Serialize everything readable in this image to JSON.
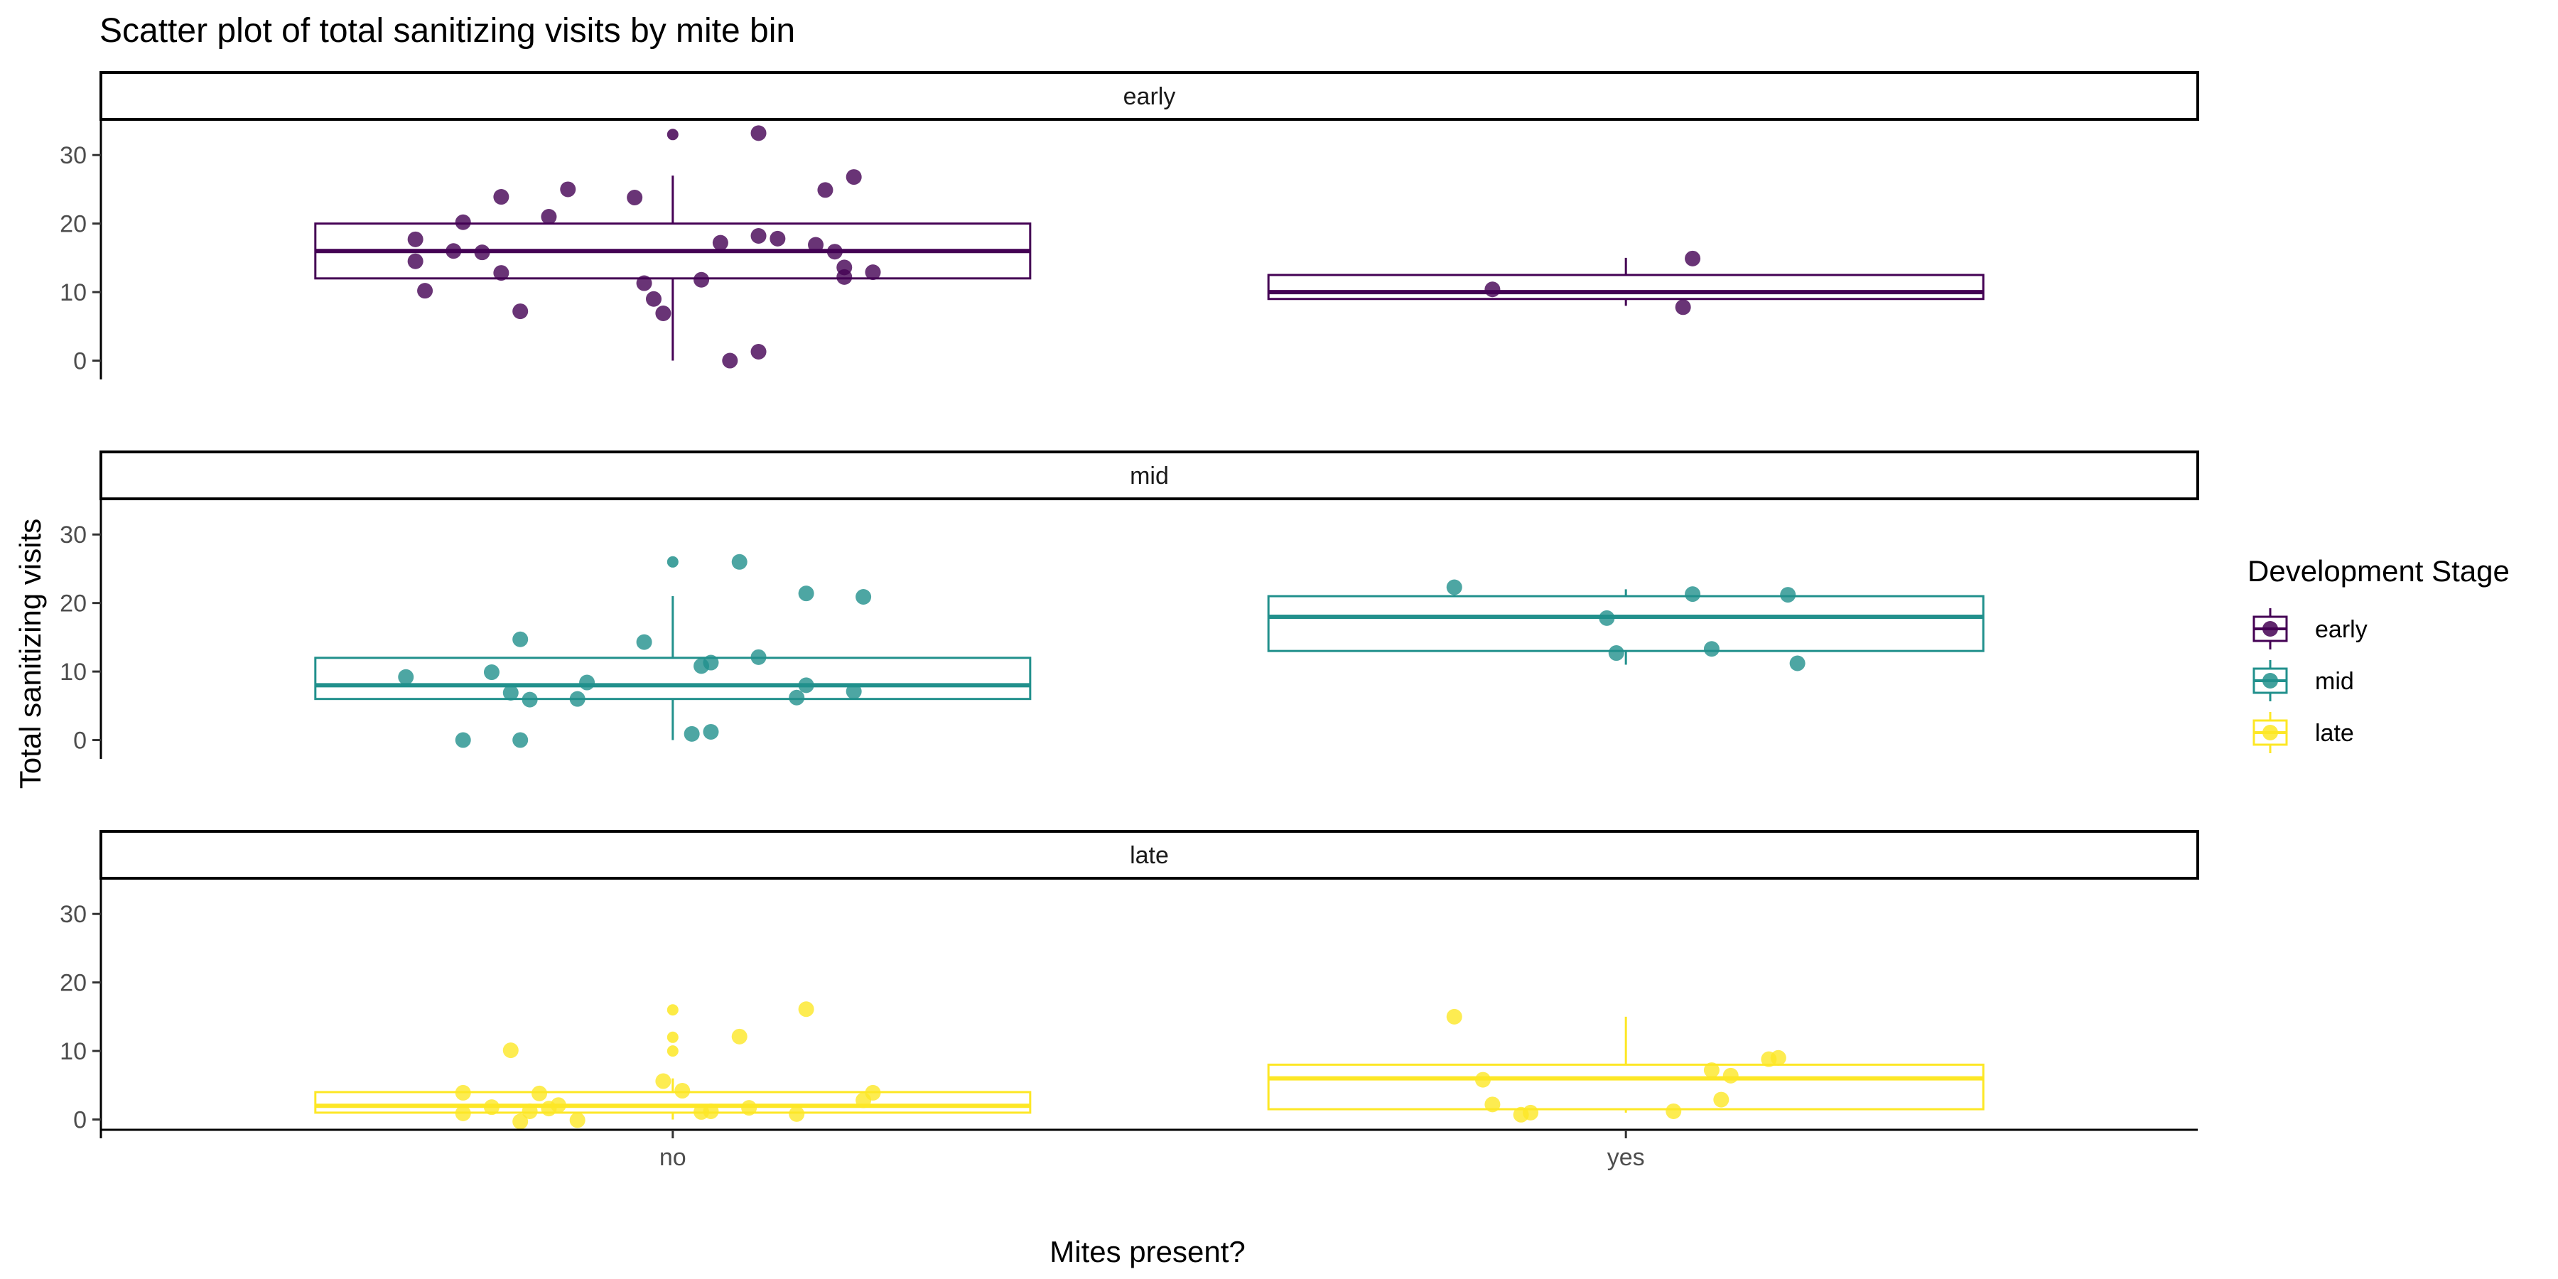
{
  "chart_data": {
    "type": "scatter",
    "title": "Scatter plot of total sanitizing visits by mite bin",
    "xlabel": "Mites present?",
    "ylabel": "Total sanitizing visits",
    "categories": [
      "no",
      "yes"
    ],
    "ylim": [
      -1.5,
      35
    ],
    "yticks": [
      0,
      10,
      20,
      30
    ],
    "grid": false,
    "legend": {
      "title": "Development Stage",
      "position": "right",
      "entries": [
        "early",
        "mid",
        "late"
      ]
    },
    "colors": {
      "early": "#440154",
      "mid": "#21908C",
      "late": "#FDE725"
    },
    "panels": [
      {
        "name": "early",
        "boxes": [
          {
            "category": "no",
            "min": 0,
            "q1": 12,
            "median": 16,
            "q3": 20,
            "max": 27
          },
          {
            "category": "yes",
            "min": 8,
            "q1": 9,
            "median": 10,
            "q3": 12.5,
            "max": 15
          }
        ],
        "outliers": [
          {
            "category": "no",
            "y": 33
          }
        ],
        "points": [
          {
            "x": 0.73,
            "y": 17.7
          },
          {
            "x": 0.78,
            "y": 20.2
          },
          {
            "x": 0.77,
            "y": 16.0
          },
          {
            "x": 0.73,
            "y": 14.5
          },
          {
            "x": 0.8,
            "y": 15.8
          },
          {
            "x": 0.74,
            "y": 10.2
          },
          {
            "x": 0.82,
            "y": 12.8
          },
          {
            "x": 0.82,
            "y": 23.9
          },
          {
            "x": 0.84,
            "y": 7.2
          },
          {
            "x": 0.87,
            "y": 21.0
          },
          {
            "x": 0.89,
            "y": 25.0
          },
          {
            "x": 0.96,
            "y": 23.8
          },
          {
            "x": 0.97,
            "y": 11.3
          },
          {
            "x": 0.98,
            "y": 9.0
          },
          {
            "x": 0.99,
            "y": 6.9
          },
          {
            "x": 1.03,
            "y": 11.8
          },
          {
            "x": 1.05,
            "y": 17.2
          },
          {
            "x": 1.06,
            "y": 0.0
          },
          {
            "x": 1.09,
            "y": 33.2
          },
          {
            "x": 1.09,
            "y": 18.2
          },
          {
            "x": 1.09,
            "y": 1.3
          },
          {
            "x": 1.11,
            "y": 17.8
          },
          {
            "x": 1.15,
            "y": 16.9
          },
          {
            "x": 1.16,
            "y": 24.9
          },
          {
            "x": 1.17,
            "y": 15.9
          },
          {
            "x": 1.18,
            "y": 13.6
          },
          {
            "x": 1.18,
            "y": 12.2
          },
          {
            "x": 1.19,
            "y": 26.8
          },
          {
            "x": 1.21,
            "y": 12.9
          },
          {
            "x": 1.86,
            "y": 10.4
          },
          {
            "x": 2.06,
            "y": 7.8
          },
          {
            "x": 2.07,
            "y": 14.9
          }
        ]
      },
      {
        "name": "mid",
        "boxes": [
          {
            "category": "no",
            "min": 0,
            "q1": 6,
            "median": 8,
            "q3": 12,
            "max": 21
          },
          {
            "category": "yes",
            "min": 11,
            "q1": 13,
            "median": 18,
            "q3": 21,
            "max": 22
          }
        ],
        "outliers": [
          {
            "category": "no",
            "y": 26
          }
        ],
        "points": [
          {
            "x": 0.72,
            "y": 9.2
          },
          {
            "x": 0.78,
            "y": 0.0
          },
          {
            "x": 0.81,
            "y": 9.9
          },
          {
            "x": 0.83,
            "y": 6.9
          },
          {
            "x": 0.84,
            "y": 14.7
          },
          {
            "x": 0.84,
            "y": 0.0
          },
          {
            "x": 0.85,
            "y": 5.9
          },
          {
            "x": 0.9,
            "y": 6.0
          },
          {
            "x": 0.91,
            "y": 8.4
          },
          {
            "x": 0.97,
            "y": 14.3
          },
          {
            "x": 1.02,
            "y": 0.9
          },
          {
            "x": 1.03,
            "y": 10.8
          },
          {
            "x": 1.04,
            "y": 11.3
          },
          {
            "x": 1.04,
            "y": 1.2
          },
          {
            "x": 1.07,
            "y": 26.0
          },
          {
            "x": 1.09,
            "y": 12.1
          },
          {
            "x": 1.13,
            "y": 6.2
          },
          {
            "x": 1.14,
            "y": 21.4
          },
          {
            "x": 1.14,
            "y": 8.0
          },
          {
            "x": 1.19,
            "y": 7.1
          },
          {
            "x": 1.2,
            "y": 20.9
          },
          {
            "x": 1.82,
            "y": 22.3
          },
          {
            "x": 1.98,
            "y": 17.8
          },
          {
            "x": 1.99,
            "y": 12.7
          },
          {
            "x": 2.07,
            "y": 21.3
          },
          {
            "x": 2.09,
            "y": 13.3
          },
          {
            "x": 2.17,
            "y": 21.2
          },
          {
            "x": 2.18,
            "y": 11.2
          }
        ]
      },
      {
        "name": "late",
        "boxes": [
          {
            "category": "no",
            "min": 0,
            "q1": 1,
            "median": 2,
            "q3": 4,
            "max": 6
          },
          {
            "category": "yes",
            "min": 1,
            "q1": 1.5,
            "median": 6,
            "q3": 8,
            "max": 15
          }
        ],
        "outliers": [
          {
            "category": "no",
            "y": 16
          },
          {
            "category": "no",
            "y": 12
          },
          {
            "category": "no",
            "y": 10
          }
        ],
        "points": [
          {
            "x": 0.78,
            "y": 3.9
          },
          {
            "x": 0.78,
            "y": 0.9
          },
          {
            "x": 0.81,
            "y": 1.8
          },
          {
            "x": 0.83,
            "y": 10.1
          },
          {
            "x": 0.84,
            "y": -0.3
          },
          {
            "x": 0.85,
            "y": 1.2
          },
          {
            "x": 0.86,
            "y": 3.8
          },
          {
            "x": 0.87,
            "y": 1.6
          },
          {
            "x": 0.88,
            "y": 2.1
          },
          {
            "x": 0.9,
            "y": -0.1
          },
          {
            "x": 0.99,
            "y": 5.6
          },
          {
            "x": 1.01,
            "y": 4.2
          },
          {
            "x": 1.03,
            "y": 1.1
          },
          {
            "x": 1.04,
            "y": 1.2
          },
          {
            "x": 1.07,
            "y": 12.1
          },
          {
            "x": 1.08,
            "y": 1.7
          },
          {
            "x": 1.13,
            "y": 0.8
          },
          {
            "x": 1.14,
            "y": 16.1
          },
          {
            "x": 1.2,
            "y": 2.8
          },
          {
            "x": 1.21,
            "y": 3.9
          },
          {
            "x": 1.82,
            "y": 15.0
          },
          {
            "x": 1.85,
            "y": 5.8
          },
          {
            "x": 1.86,
            "y": 2.2
          },
          {
            "x": 1.89,
            "y": 0.7
          },
          {
            "x": 1.9,
            "y": 1.0
          },
          {
            "x": 2.05,
            "y": 1.2
          },
          {
            "x": 2.09,
            "y": 7.2
          },
          {
            "x": 2.1,
            "y": 2.9
          },
          {
            "x": 2.11,
            "y": 6.4
          },
          {
            "x": 2.15,
            "y": 8.8
          },
          {
            "x": 2.16,
            "y": 9.0
          }
        ]
      }
    ]
  }
}
